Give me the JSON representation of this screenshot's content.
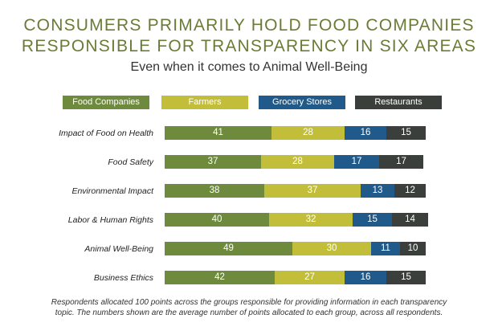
{
  "header": {
    "title_line1": "CONSUMERS PRIMARILY HOLD FOOD COMPANIES",
    "title_line2": "RESPONSIBLE FOR TRANSPARENCY IN SIX AREAS",
    "subtitle": "Even when it comes to Animal Well-Being"
  },
  "colors": {
    "Food Companies": "#6e8a3c",
    "Farmers": "#c3be3a",
    "Grocery Stores": "#1f5a8a",
    "Restaurants": "#3b3f3c"
  },
  "chart_data": {
    "type": "bar",
    "orientation": "horizontal",
    "stacked": true,
    "title": "CONSUMERS PRIMARILY HOLD FOOD COMPANIES RESPONSIBLE FOR TRANSPARENCY IN SIX AREAS",
    "subtitle": "Even when it comes to Animal Well-Being",
    "legend_position": "top",
    "categories": [
      "Impact of Food on Health",
      "Food Safety",
      "Environmental Impact",
      "Labor & Human Rights",
      "Animal Well-Being",
      "Business Ethics"
    ],
    "series": [
      {
        "name": "Food Companies",
        "values": [
          41,
          37,
          38,
          40,
          49,
          42
        ]
      },
      {
        "name": "Farmers",
        "values": [
          28,
          28,
          37,
          32,
          30,
          27
        ]
      },
      {
        "name": "Grocery Stores",
        "values": [
          16,
          17,
          13,
          15,
          11,
          16
        ]
      },
      {
        "name": "Restaurants",
        "values": [
          15,
          17,
          12,
          14,
          10,
          15
        ]
      }
    ],
    "xlim": [
      0,
      100
    ],
    "grid": false
  },
  "footnote": {
    "line1": "Respondents allocated 100 points across the groups responsible for providing information in each transparency",
    "line2": "topic. The numbers shown are the average number of points allocated to each group, across all respondents."
  }
}
